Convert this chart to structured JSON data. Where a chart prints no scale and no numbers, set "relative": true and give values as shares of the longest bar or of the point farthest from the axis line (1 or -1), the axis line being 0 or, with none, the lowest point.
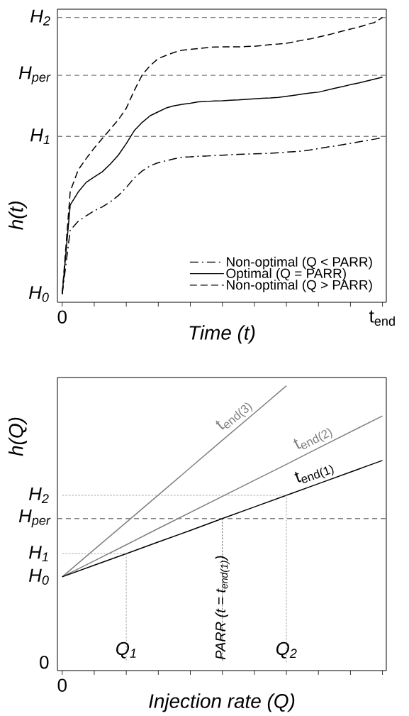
{
  "chart_data": [
    {
      "type": "line",
      "relative": true,
      "xlabel": "Time (t)",
      "ylabel": "h(t)",
      "categories": [
        "0",
        null,
        null,
        null,
        null,
        null,
        null,
        null,
        null,
        null,
        null,
        null,
        null,
        null,
        null,
        null,
        null,
        null,
        null,
        null,
        null,
        null,
        null,
        null,
        null,
        null,
        null,
        null,
        null,
        null,
        null,
        null,
        null,
        null,
        null,
        null,
        null,
        null,
        null,
        null,
        "t$_{end}$"
      ],
      "legend": "bottom right",
      "series": [
        {
          "name": "Non-optimal (Q < PARR)",
          "color": "#000000",
          "line_style": "dashdot",
          "values": [
            0,
            0.231,
            0.263,
            0.283,
            0.301,
            0.315,
            0.333,
            0.356,
            0.385,
            0.42,
            0.445,
            0.464,
            0.475,
            0.482,
            0.489,
            0.495,
            0.496,
            0.498,
            0.499,
            0.501,
            0.502,
            0.504,
            0.505,
            0.506,
            0.507,
            0.508,
            0.509,
            0.511,
            0.513,
            0.515,
            0.517,
            0.521,
            0.526,
            0.531,
            0.535,
            0.54,
            0.545,
            0.55,
            0.555,
            0.56,
            0.565
          ]
        },
        {
          "name": "Optimal (Q = PARR)",
          "color": "#000000",
          "line_style": "solid",
          "values": [
            0,
            0.322,
            0.369,
            0.404,
            0.423,
            0.442,
            0.47,
            0.502,
            0.544,
            0.591,
            0.621,
            0.645,
            0.659,
            0.673,
            0.681,
            0.686,
            0.69,
            0.695,
            0.696,
            0.698,
            0.699,
            0.701,
            0.702,
            0.704,
            0.706,
            0.708,
            0.709,
            0.711,
            0.715,
            0.719,
            0.723,
            0.727,
            0.73,
            0.737,
            0.744,
            0.75,
            0.757,
            0.763,
            0.77,
            0.777,
            0.784
          ]
        },
        {
          "name": "Non-optimal (Q > PARR)",
          "color": "#000000",
          "line_style": "dashed",
          "values": [
            0,
            0.371,
            0.449,
            0.49,
            0.528,
            0.562,
            0.596,
            0.63,
            0.672,
            0.736,
            0.793,
            0.826,
            0.852,
            0.863,
            0.874,
            0.882,
            0.885,
            0.888,
            0.891,
            0.893,
            0.894,
            0.894,
            0.894,
            0.895,
            0.896,
            0.899,
            0.902,
            0.904,
            0.907,
            0.912,
            0.918,
            0.923,
            0.929,
            0.936,
            0.943,
            0.951,
            0.958,
            0.965,
            0.974,
            0.982,
            1
          ]
        }
      ],
      "ref_lines": [
        {
          "axis": "y",
          "value": 0.57,
          "label": "H$_{1}$",
          "color": "#808080",
          "line_style": "dashed"
        },
        {
          "axis": "y",
          "value": 0.791,
          "label": "H$_{per}$",
          "color": "#808080",
          "line_style": "dashed"
        },
        {
          "axis": "y",
          "value": 1,
          "label": "H$_{2}$",
          "color": "#808080",
          "line_style": "dashed"
        }
      ],
      "annotations": [
        {
          "text": "H$_{0}$",
          "x": "0",
          "y": 0
        }
      ]
    },
    {
      "type": "line",
      "relative": true,
      "xlabel": "Injection rate (Q)",
      "ylabel": "h(Q)",
      "categories": [
        "0",
        null,
        "Q$_{1}$",
        null,
        null,
        "PARR (t = t$_{end(1)}$)",
        null,
        "Q$_{2}$",
        null,
        null,
        null
      ],
      "series": [
        {
          "name": "t$_{end(3)}$",
          "color": "#7f7f7f",
          "line_style": "solid",
          "values": [
            0.309,
            0.408,
            0.506,
            0.605,
            0.704,
            0.803,
            0.901,
            1,
            null,
            null,
            null
          ]
        },
        {
          "name": "t$_{end(2)}$",
          "color": "#7f7f7f",
          "line_style": "solid",
          "values": [
            0.309,
            0.367,
            0.425,
            0.484,
            0.542,
            0.6,
            0.658,
            0.716,
            0.775,
            0.833,
            0.891
          ]
        },
        {
          "name": "t$_{end(1)}$",
          "color": "#000000",
          "line_style": "solid",
          "values": [
            0.309,
            0.351,
            0.393,
            0.435,
            0.477,
            0.52,
            0.562,
            0.604,
            0.646,
            0.688,
            0.73
          ]
        },
        {
          "color": "#9a9a9a",
          "line_style": "dotted",
          "x": [
            "0",
            "Q$_{1}$",
            "Q$_{1}$"
          ],
          "values": [
            0.393,
            0.393,
            0
          ]
        },
        {
          "color": "#9a9a9a",
          "line_style": "dotted",
          "x": [
            "0",
            "Q$_{2}$",
            "Q$_{2}$"
          ],
          "values": [
            0.604,
            0.604,
            0
          ]
        },
        {
          "color": "#555555",
          "line_style": "dotted",
          "x": [
            "PARR (t = t$_{end(1)}$)",
            "PARR (t = t$_{end(1)}$)"
          ],
          "values": [
            0.52,
            0
          ]
        }
      ],
      "ref_lines": [
        {
          "axis": "y",
          "value": 0.52,
          "label": "H$_{per}$",
          "color": "#808080",
          "line_style": "dashed"
        }
      ],
      "annotations": [
        "0",
        {
          "text": "H$_{0}$",
          "x": "0",
          "y": 0.309
        },
        {
          "text": "H$_{1}$",
          "x": "0",
          "y": 0.393
        },
        {
          "text": "H$_{2}$",
          "x": "0",
          "y": 0.604
        }
      ]
    }
  ]
}
